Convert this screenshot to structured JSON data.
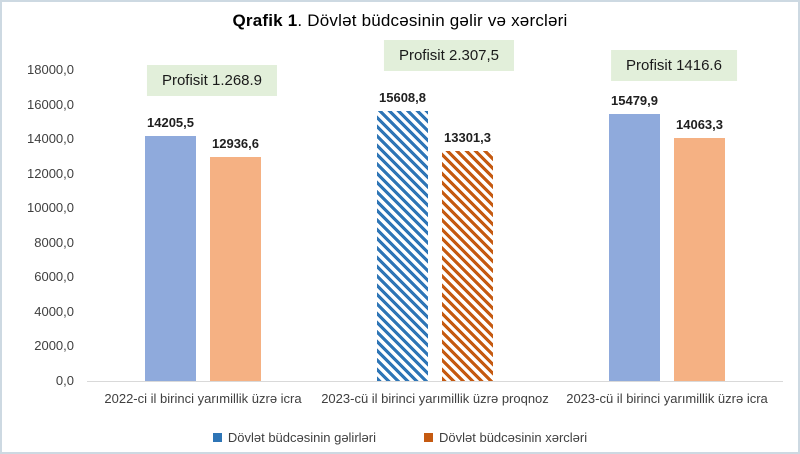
{
  "title": {
    "bold": "Qrafik 1",
    "rest": ". Dövlət büdcəsinin gəlir və xərcləri"
  },
  "chart_data": {
    "type": "bar",
    "title": "Qrafik 1. Dövlət büdcəsinin gəlir və xərcləri",
    "categories": [
      "2022-ci il birinci yarımillik üzrə  icra",
      "2023-cü il birinci yarımillik üzrə proqnoz",
      "2023-cü il birinci yarımillik üzrə icra"
    ],
    "series": [
      {
        "name": "Dövlət büdcəsinin gəlirləri",
        "values": [
          14205.5,
          15608.8,
          15479.9
        ],
        "labels": [
          "14205,5",
          "15608,8",
          "15479,9"
        ],
        "solid_color": "#8FAADC",
        "dark_color": "#2E75B6"
      },
      {
        "name": "Dövlət büdcəsinin xərcləri",
        "values": [
          12936.6,
          13301.3,
          14063.3
        ],
        "labels": [
          "12936,6",
          "13301,3",
          "14063,3"
        ],
        "solid_color": "#F5B183",
        "dark_color": "#C55A11"
      }
    ],
    "hatched_category_index": 1,
    "annotations": [
      "Profisit 1.268.9",
      "Profisit 2.307,5",
      "Profisit 1416.6"
    ],
    "annotation_bg": "#E2EFDA",
    "ylim": [
      0,
      18000
    ],
    "ytick_step": 2000,
    "ytick_labels": [
      "0,0",
      "2000,0",
      "4000,0",
      "6000,0",
      "8000,0",
      "10000,0",
      "12000,0",
      "14000,0",
      "16000,0",
      "18000,0"
    ],
    "grid": false,
    "legend_position": "bottom",
    "axis_line_color": "#D9D9D9",
    "frame_border_color": "#CDD9E2"
  }
}
